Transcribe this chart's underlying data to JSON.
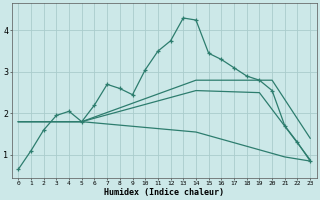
{
  "xlabel": "Humidex (Indice chaleur)",
  "bg_color": "#cce8e8",
  "grid_color": "#aacccc",
  "line_color": "#2d7d6e",
  "x_ticks": [
    0,
    1,
    2,
    3,
    4,
    5,
    6,
    7,
    8,
    9,
    10,
    11,
    12,
    13,
    14,
    15,
    16,
    17,
    18,
    19,
    20,
    21,
    22,
    23
  ],
  "y_ticks": [
    1,
    2,
    3,
    4
  ],
  "ylim": [
    0.45,
    4.65
  ],
  "xlim": [
    -0.5,
    23.5
  ],
  "curve1_x": [
    0,
    1,
    2,
    3,
    4,
    5,
    6,
    7,
    8,
    9,
    10,
    11,
    12,
    13,
    14,
    15,
    16,
    17,
    18,
    19,
    20,
    21,
    22,
    23
  ],
  "curve1_y": [
    0.65,
    1.1,
    1.6,
    1.95,
    2.05,
    1.8,
    2.2,
    2.7,
    2.6,
    2.45,
    3.05,
    3.5,
    3.75,
    4.3,
    4.25,
    3.45,
    3.3,
    3.1,
    2.9,
    2.8,
    2.55,
    1.7,
    1.3,
    0.85
  ],
  "curve2_x": [
    0,
    5,
    14,
    20,
    23
  ],
  "curve2_y": [
    1.8,
    1.8,
    2.8,
    2.8,
    1.4
  ],
  "curve3_x": [
    0,
    5,
    14,
    19,
    23
  ],
  "curve3_y": [
    1.8,
    1.8,
    2.55,
    2.5,
    0.88
  ],
  "curve4_x": [
    0,
    5,
    14,
    21,
    23
  ],
  "curve4_y": [
    1.8,
    1.8,
    1.55,
    0.95,
    0.85
  ]
}
